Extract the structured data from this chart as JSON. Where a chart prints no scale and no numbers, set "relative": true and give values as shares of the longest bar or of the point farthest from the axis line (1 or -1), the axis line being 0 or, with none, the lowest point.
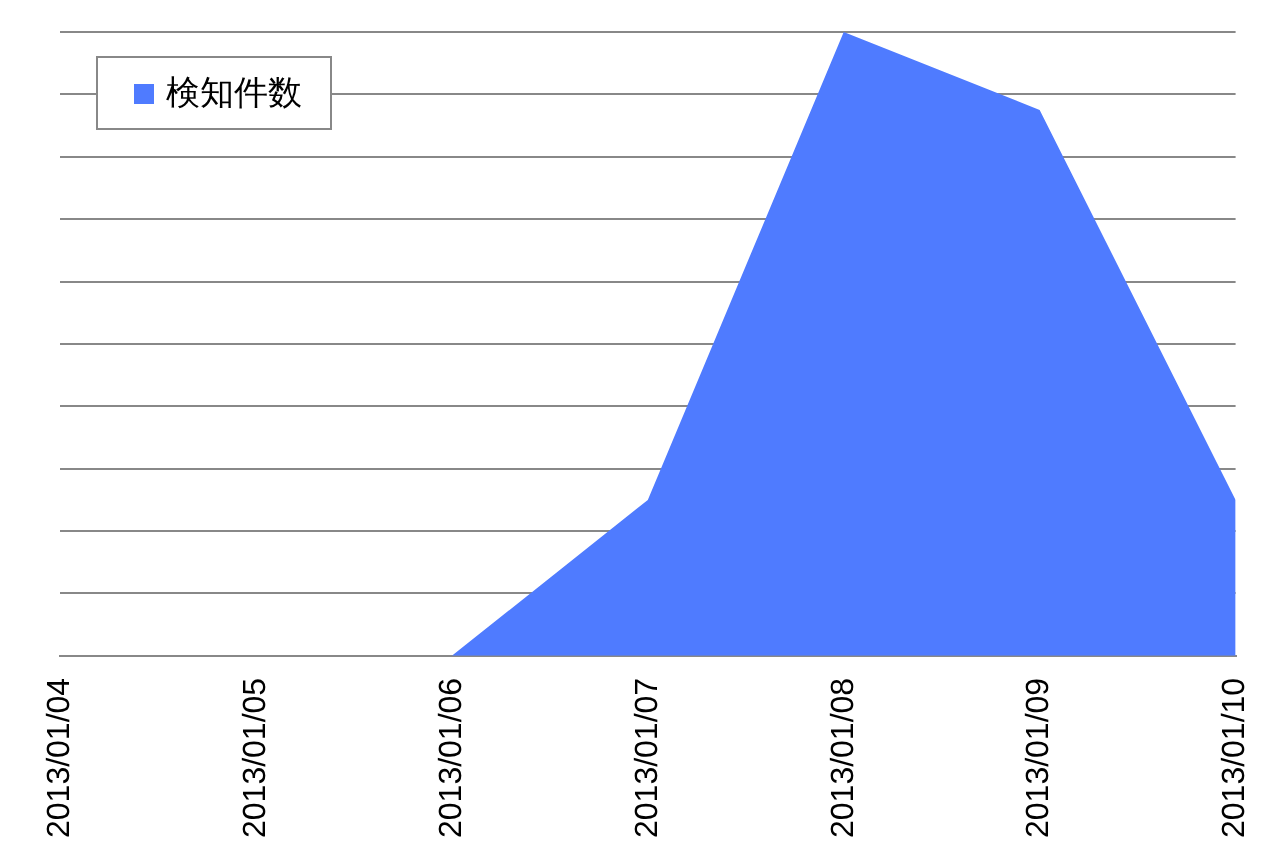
{
  "chart_data": {
    "type": "area",
    "relative": true,
    "categories": [
      "2013/01/04",
      "2013/01/05",
      "2013/01/06",
      "2013/01/07",
      "2013/01/08",
      "2013/01/09",
      "2013/01/10"
    ],
    "series": [
      {
        "name": "検知件数",
        "color": "#4f7bff",
        "values": [
          0,
          0,
          0,
          0.25,
          1,
          0.875,
          0.25
        ]
      }
    ],
    "grid": "y",
    "legend": "top left"
  }
}
